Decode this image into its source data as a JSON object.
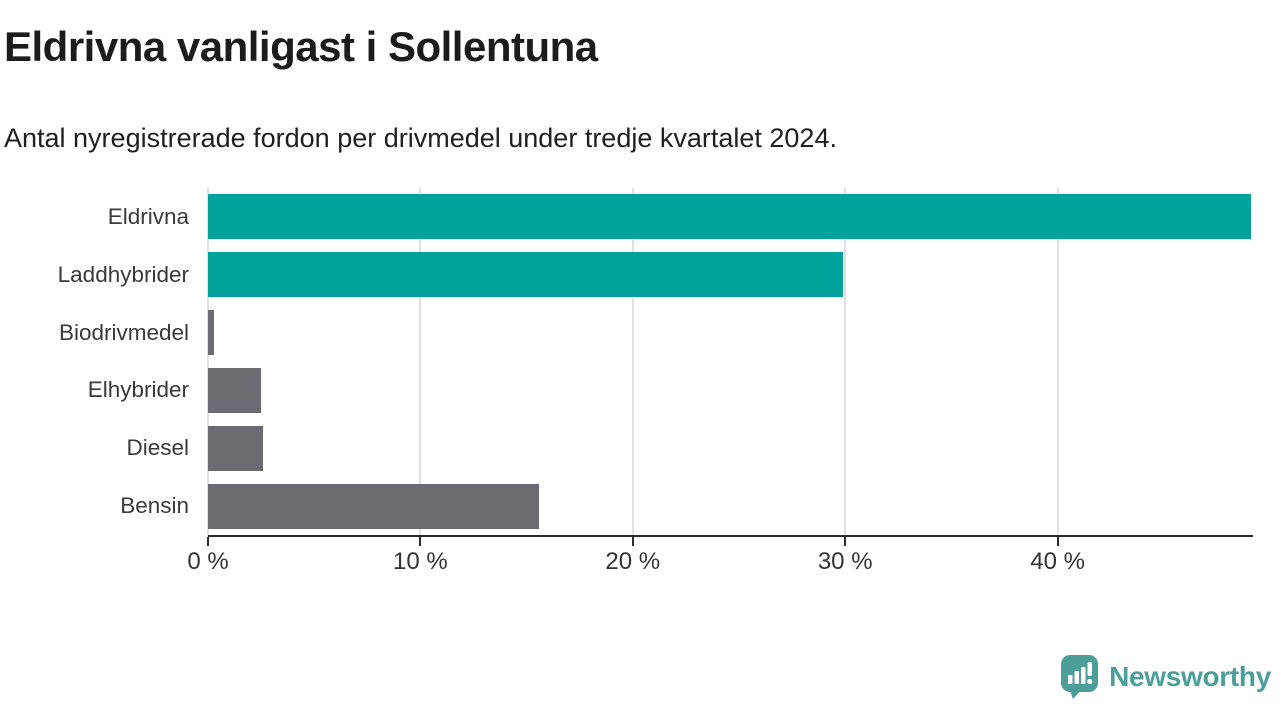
{
  "header": {
    "title": "Eldrivna vanligast i Sollentuna",
    "subtitle": "Antal nyregistrerade fordon per drivmedel under tredje kvartalet 2024."
  },
  "chart_data": {
    "type": "bar",
    "orientation": "horizontal",
    "title": "Eldrivna vanligast i Sollentuna",
    "subtitle": "Antal nyregistrerade fordon per drivmedel under tredje kvartalet 2024.",
    "categories": [
      "Eldrivna",
      "Laddhybrider",
      "Biodrivmedel",
      "Elhybrider",
      "Diesel",
      "Bensin"
    ],
    "values": [
      49.1,
      29.9,
      0.3,
      2.5,
      2.6,
      15.6
    ],
    "unit": "%",
    "bar_colors": [
      "#00a29a",
      "#00a29a",
      "#6b6b71",
      "#6b6b71",
      "#6b6b71",
      "#6b6b71"
    ],
    "x_ticks": [
      {
        "value": 0,
        "label": "0 %"
      },
      {
        "value": 10,
        "label": "10 %"
      },
      {
        "value": 20,
        "label": "20 %"
      },
      {
        "value": 30,
        "label": "30 %"
      },
      {
        "value": 40,
        "label": "40 %"
      }
    ],
    "xlim": [
      0,
      49.2
    ],
    "grid": "vertical",
    "legend": "none"
  },
  "colors": {
    "highlight_teal": "#00a29a",
    "neutral_gray": "#6b6b71",
    "gridline": "#e0e0e0",
    "axis": "#2b2b2b",
    "brand_teal": "#4c9f99"
  },
  "footer": {
    "brand": "Newsworthy"
  }
}
